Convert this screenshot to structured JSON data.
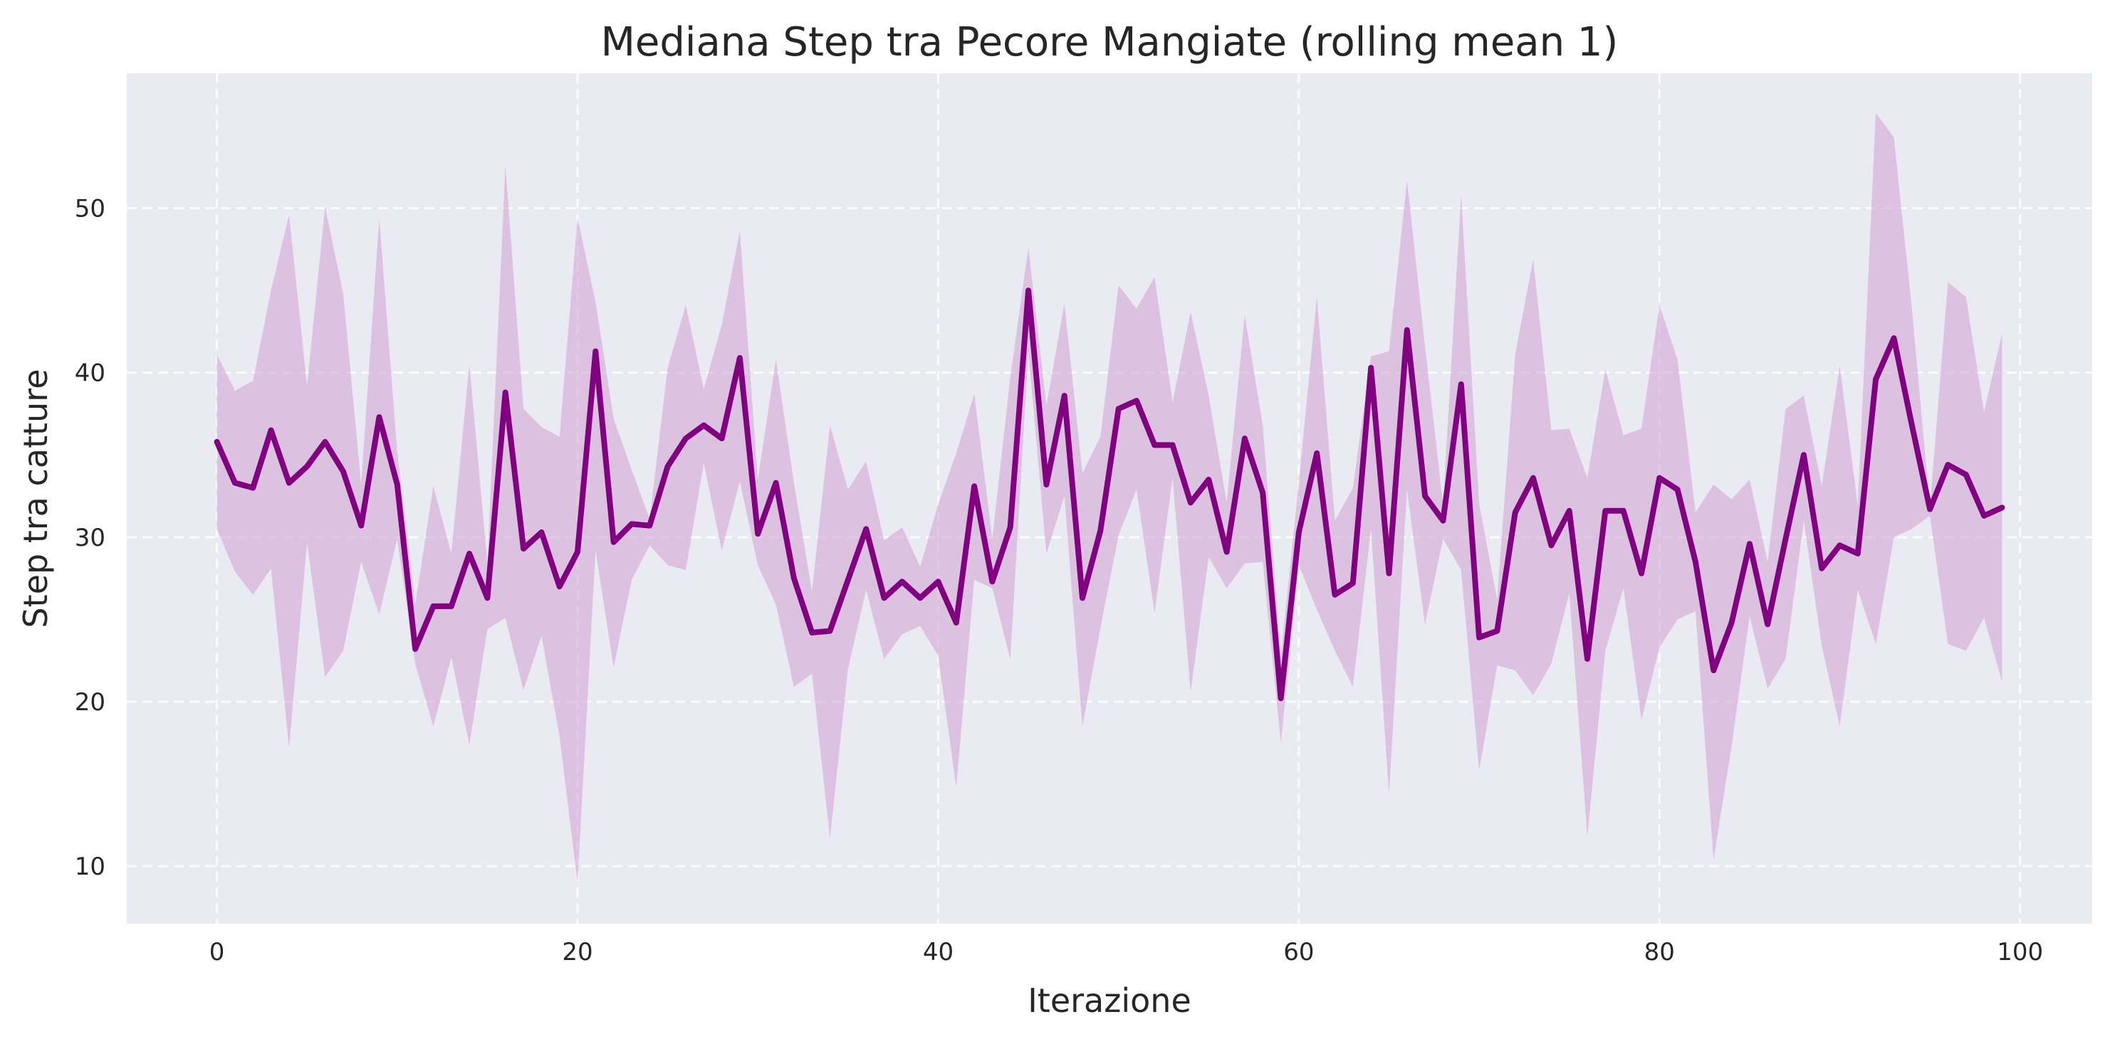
{
  "chart_data": {
    "type": "line",
    "title": "Mediana Step tra Pecore Mangiate (rolling mean 1)",
    "xlabel": "Iterazione",
    "ylabel": "Step tra catture",
    "xlim": [
      -5,
      104
    ],
    "ylim": [
      6.5,
      58.2
    ],
    "xticks": [
      0,
      20,
      40,
      60,
      80,
      100
    ],
    "yticks": [
      10,
      20,
      30,
      40,
      50
    ],
    "grid": true,
    "background_color": "#EAEAF2",
    "line_color": "#800080",
    "band_color": "#CF9FD4",
    "series": [
      {
        "x": [
          0,
          1,
          2,
          3,
          4,
          5,
          6,
          7,
          8,
          9,
          10,
          11,
          12,
          13,
          14,
          15,
          16,
          17,
          18,
          19,
          20,
          21,
          22,
          23,
          24,
          25,
          26,
          27,
          28,
          29,
          30,
          31,
          32,
          33,
          34,
          35,
          36,
          37,
          38,
          39,
          40,
          41,
          42,
          43,
          44,
          45,
          46,
          47,
          48,
          49,
          50,
          51,
          52,
          53,
          54,
          55,
          56,
          57,
          58,
          59,
          60,
          61,
          62,
          63,
          64,
          65,
          66,
          67,
          68,
          69,
          70,
          71,
          72,
          73,
          74,
          75,
          76,
          77,
          78,
          79,
          80,
          81,
          82,
          83,
          84,
          85,
          86,
          87,
          88,
          89,
          90,
          91,
          92,
          93,
          94,
          95,
          96,
          97,
          98,
          99
        ],
        "median": [
          35.8,
          33.3,
          33.0,
          36.5,
          33.3,
          34.3,
          35.8,
          34.0,
          30.7,
          37.3,
          33.2,
          23.2,
          25.8,
          25.8,
          29.0,
          26.3,
          38.8,
          29.3,
          30.3,
          27.0,
          29.1,
          41.3,
          29.7,
          30.8,
          30.7,
          34.3,
          36.0,
          36.8,
          36.0,
          40.9,
          30.2,
          33.3,
          27.5,
          24.2,
          24.3,
          27.4,
          30.5,
          26.3,
          27.3,
          26.3,
          27.3,
          24.8,
          33.1,
          27.3,
          30.6,
          45.0,
          33.2,
          38.6,
          26.3,
          30.4,
          37.8,
          38.3,
          35.6,
          35.6,
          32.1,
          33.5,
          29.1,
          36.0,
          32.7,
          20.2,
          30.3,
          35.1,
          26.5,
          27.2,
          40.3,
          27.8,
          42.6,
          32.5,
          31.0,
          39.3,
          23.9,
          24.3,
          31.5,
          33.6,
          29.5,
          31.6,
          22.6,
          31.6,
          31.6,
          27.8,
          33.6,
          32.9,
          28.5,
          21.9,
          24.8,
          29.6,
          24.7,
          29.9,
          35.0,
          28.1,
          29.5,
          29.0,
          39.6,
          42.1,
          36.8,
          31.7,
          34.4,
          33.8,
          31.3,
          31.8
        ],
        "lower": [
          30.5,
          27.9,
          26.5,
          28.1,
          17.2,
          29.7,
          21.5,
          23.1,
          28.5,
          25.3,
          29.9,
          22.3,
          18.5,
          22.7,
          17.4,
          24.4,
          25.1,
          20.7,
          24.0,
          17.9,
          9.0,
          29.2,
          22.1,
          27.4,
          29.5,
          28.3,
          28.0,
          34.5,
          29.2,
          33.4,
          28.3,
          25.9,
          20.9,
          21.7,
          11.7,
          22.0,
          26.8,
          22.6,
          24.1,
          24.6,
          22.8,
          14.8,
          27.4,
          26.9,
          22.6,
          41.3,
          29.0,
          32.5,
          18.5,
          24.5,
          30.1,
          32.9,
          25.4,
          33.6,
          20.6,
          28.8,
          26.9,
          28.4,
          28.5,
          17.5,
          28.3,
          25.6,
          23.1,
          20.9,
          30.5,
          14.4,
          32.9,
          24.7,
          29.9,
          28.0,
          15.8,
          22.2,
          21.9,
          20.4,
          22.3,
          26.6,
          11.8,
          23.1,
          26.9,
          18.9,
          23.3,
          25.0,
          25.5,
          10.4,
          17.3,
          25.2,
          20.8,
          22.6,
          31.0,
          23.4,
          18.5,
          26.8,
          23.5,
          30.0,
          30.5,
          31.3,
          23.5,
          23.1,
          25.1,
          21.2
        ],
        "upper": [
          41.1,
          38.9,
          39.5,
          45.0,
          49.6,
          39.2,
          50.1,
          44.8,
          33.2,
          49.4,
          35.2,
          25.9,
          33.1,
          29.0,
          40.5,
          28.4,
          52.6,
          37.8,
          36.7,
          36.1,
          49.4,
          44.3,
          37.2,
          34.1,
          31.1,
          40.3,
          44.1,
          39.0,
          42.9,
          48.6,
          33.5,
          40.8,
          33.3,
          26.7,
          36.8,
          32.9,
          34.6,
          29.8,
          30.6,
          28.2,
          32.0,
          35.1,
          38.7,
          29.9,
          39.7,
          47.6,
          38.0,
          44.2,
          33.9,
          36.1,
          45.3,
          43.9,
          45.8,
          38.2,
          43.7,
          38.6,
          32.1,
          43.5,
          36.8,
          22.8,
          33.3,
          44.6,
          31.0,
          33.0,
          41.0,
          41.3,
          51.7,
          41.6,
          32.0,
          50.8,
          32.0,
          26.2,
          41.1,
          46.9,
          36.5,
          36.6,
          33.6,
          40.2,
          36.2,
          36.6,
          44.1,
          40.8,
          31.5,
          33.2,
          32.3,
          33.5,
          28.5,
          37.8,
          38.6,
          33.1,
          40.4,
          31.9,
          55.8,
          54.3,
          43.9,
          31.8,
          45.5,
          44.6,
          37.6,
          42.4
        ]
      }
    ]
  }
}
